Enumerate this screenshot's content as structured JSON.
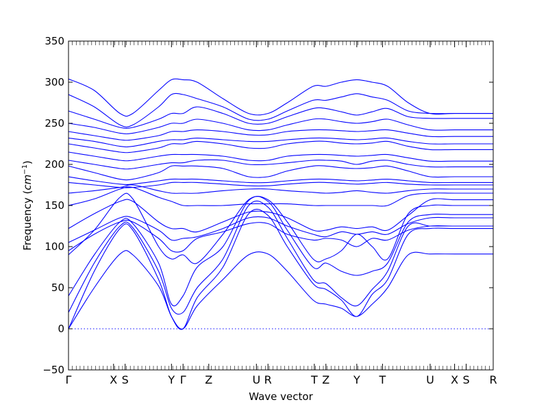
{
  "chart_data": {
    "type": "line",
    "xlabel": "Wave vector",
    "ylabel_text": "Frequency (",
    "ylabel_unit": "cm",
    "ylabel_exp": "−1",
    "ylabel_close": ")",
    "ylim": [
      -50,
      350
    ],
    "yticks": [
      -50,
      0,
      50,
      100,
      150,
      200,
      250,
      300,
      350
    ],
    "xlim": [
      0,
      16.5
    ],
    "grid": false,
    "legend": "none",
    "line_color": "#0000ff",
    "kpoints": [
      {
        "label": "Γ",
        "x": 0
      },
      {
        "label": "X",
        "x": 1.75
      },
      {
        "label": "S",
        "x": 2.2
      },
      {
        "label": "Y",
        "x": 4.0
      },
      {
        "label": "Γ",
        "x": 4.45
      },
      {
        "label": "Z",
        "x": 5.45
      },
      {
        "label": "U",
        "x": 7.3
      },
      {
        "label": "R",
        "x": 7.75
      },
      {
        "label": "T",
        "x": 9.55
      },
      {
        "label": "Z",
        "x": 10.0
      },
      {
        "label": "Y",
        "x": 11.2
      },
      {
        "label": "T",
        "x": 12.2
      },
      {
        "label": "U",
        "x": 14.05
      },
      {
        "label": "X",
        "x": 15.0
      },
      {
        "label": "S",
        "x": 15.45
      },
      {
        "label": "R",
        "x": 16.5
      }
    ],
    "series": [
      {
        "x": [
          0,
          1,
          2,
          2.5,
          3.5,
          4,
          4.45,
          5,
          6,
          7,
          7.75,
          8.5,
          9.5,
          10,
          10.6,
          11.2,
          11.8,
          12.4,
          13.2,
          14.05,
          15,
          16.5
        ],
        "y": [
          0,
          50,
          91,
          90,
          52,
          15,
          0,
          28,
          60,
          90,
          91,
          70,
          35,
          30,
          25,
          15,
          30,
          50,
          90,
          91,
          91,
          91
        ]
      },
      {
        "x": [
          0,
          1,
          2,
          2.5,
          3.5,
          4,
          4.45,
          5,
          6,
          7,
          7.75,
          8.5,
          9.5,
          10,
          10.6,
          11.2,
          11.8,
          12.4,
          13.2,
          14.05,
          15,
          16.5
        ],
        "y": [
          0,
          70,
          122,
          120,
          60,
          15,
          0,
          38,
          75,
          140,
          138,
          100,
          55,
          48,
          35,
          15,
          42,
          60,
          115,
          122,
          122,
          122
        ]
      },
      {
        "x": [
          0,
          1,
          2,
          2.5,
          3.5,
          4,
          4.45,
          5,
          6,
          7,
          7.75,
          8.5,
          9.5,
          10,
          10.6,
          11.2,
          11.8,
          12.4,
          13.2,
          14.05,
          15,
          16.5
        ],
        "y": [
          20,
          80,
          125,
          123,
          70,
          25,
          20,
          50,
          85,
          150,
          148,
          110,
          60,
          55,
          38,
          28,
          48,
          70,
          125,
          125,
          125,
          125
        ]
      },
      {
        "x": [
          0,
          1,
          2,
          2.5,
          3.5,
          4,
          4.45,
          5,
          6,
          7,
          7.75,
          8.5,
          9.5,
          10,
          10.6,
          11.2,
          11.8,
          12.4,
          13.2,
          14.05,
          15,
          16.5
        ],
        "y": [
          40,
          90,
          130,
          128,
          80,
          30,
          40,
          75,
          100,
          156,
          155,
          120,
          75,
          80,
          70,
          65,
          70,
          80,
          130,
          139,
          139,
          139
        ]
      },
      {
        "x": [
          0,
          1,
          2,
          2.5,
          3.5,
          4,
          4.45,
          5,
          6,
          7,
          7.75,
          8.5,
          9.5,
          10,
          10.6,
          11.2,
          11.8,
          12.4,
          13.2,
          14.05,
          15,
          16.5
        ],
        "y": [
          90,
          120,
          160,
          158,
          100,
          85,
          90,
          80,
          115,
          157,
          157,
          130,
          85,
          85,
          95,
          115,
          100,
          85,
          140,
          150,
          150,
          150
        ]
      },
      {
        "x": [
          0,
          1,
          2,
          2.5,
          3.5,
          4,
          4.45,
          5,
          6,
          7,
          7.75,
          8.5,
          9.5,
          10,
          10.6,
          11.2,
          11.8,
          12.4,
          13.2,
          14.05,
          15,
          16.5
        ],
        "y": [
          95,
          115,
          130,
          130,
          110,
          95,
          95,
          110,
          118,
          128,
          128,
          115,
          108,
          110,
          108,
          100,
          110,
          108,
          120,
          125,
          125,
          125
        ]
      },
      {
        "x": [
          0,
          1,
          2,
          2.5,
          3.5,
          4,
          4.45,
          5,
          6,
          7,
          7.75,
          8.5,
          9.5,
          10,
          10.6,
          11.2,
          11.8,
          12.4,
          13.2,
          14.05,
          15,
          16.5
        ],
        "y": [
          105,
          120,
          135,
          135,
          120,
          108,
          110,
          112,
          122,
          135,
          135,
          125,
          115,
          112,
          118,
          115,
          118,
          115,
          128,
          135,
          135,
          135
        ]
      },
      {
        "x": [
          0,
          1,
          2,
          2.5,
          3.5,
          4,
          4.45,
          5,
          6,
          7,
          7.75,
          8.5,
          9.5,
          10,
          10.6,
          11.2,
          11.8,
          12.4,
          13.2,
          14.05,
          15,
          16.5
        ],
        "y": [
          122,
          140,
          155,
          155,
          130,
          122,
          122,
          118,
          130,
          142,
          142,
          135,
          120,
          120,
          124,
          122,
          124,
          120,
          138,
          157,
          157,
          157
        ]
      },
      {
        "x": [
          0,
          1,
          2,
          2.5,
          3.5,
          4,
          4.45,
          5,
          6,
          7,
          7.75,
          8.5,
          9.5,
          10,
          10.6,
          11.2,
          11.8,
          12.4,
          13.2,
          14.05,
          15,
          16.5
        ],
        "y": [
          150,
          158,
          170,
          172,
          160,
          155,
          150,
          150,
          150,
          152,
          152,
          152,
          150,
          150,
          150,
          150,
          150,
          150,
          162,
          165,
          165,
          165
        ]
      },
      {
        "x": [
          0,
          1,
          2,
          2.5,
          3.5,
          4,
          4.45,
          5,
          6,
          7,
          7.75,
          8.5,
          9.5,
          10,
          10.6,
          11.2,
          11.8,
          12.4,
          13.2,
          14.05,
          15,
          16.5
        ],
        "y": [
          165,
          168,
          172,
          175,
          168,
          165,
          165,
          165,
          168,
          170,
          170,
          168,
          166,
          165,
          166,
          168,
          166,
          165,
          168,
          170,
          170,
          170
        ]
      },
      {
        "x": [
          0,
          1,
          2,
          2.5,
          3.5,
          4,
          4.45,
          5,
          6,
          7,
          7.75,
          8.5,
          9.5,
          10,
          10.6,
          11.2,
          11.8,
          12.4,
          13.2,
          14.05,
          15,
          16.5
        ],
        "y": [
          178,
          175,
          172,
          172,
          175,
          178,
          178,
          178,
          176,
          174,
          174,
          176,
          178,
          178,
          177,
          176,
          177,
          178,
          176,
          175,
          175,
          175
        ]
      },
      {
        "x": [
          0,
          1,
          2,
          2.5,
          3.5,
          4,
          4.45,
          5,
          6,
          7,
          7.75,
          8.5,
          9.5,
          10,
          10.6,
          11.2,
          11.8,
          12.4,
          13.2,
          14.05,
          15,
          16.5
        ],
        "y": [
          185,
          180,
          176,
          176,
          180,
          182,
          182,
          182,
          180,
          178,
          178,
          180,
          182,
          182,
          181,
          180,
          181,
          182,
          180,
          178,
          178,
          178
        ]
      },
      {
        "x": [
          0,
          1,
          2,
          2.5,
          3.5,
          4,
          4.45,
          5,
          6,
          7,
          7.75,
          8.5,
          9.5,
          10,
          10.6,
          11.2,
          11.8,
          12.4,
          13.2,
          14.05,
          15,
          16.5
        ],
        "y": [
          198,
          190,
          182,
          182,
          190,
          198,
          198,
          198,
          195,
          185,
          185,
          192,
          198,
          198,
          196,
          195,
          196,
          198,
          192,
          185,
          185,
          185
        ]
      },
      {
        "x": [
          0,
          1,
          2,
          2.5,
          3.5,
          4,
          4.45,
          5,
          6,
          7,
          7.75,
          8.5,
          9.5,
          10,
          10.6,
          11.2,
          11.8,
          12.4,
          13.2,
          14.05,
          15,
          16.5
        ],
        "y": [
          205,
          200,
          195,
          195,
          200,
          202,
          202,
          205,
          205,
          200,
          200,
          202,
          205,
          205,
          204,
          200,
          204,
          205,
          200,
          197,
          197,
          197
        ]
      },
      {
        "x": [
          0,
          1,
          2,
          2.5,
          3.5,
          4,
          4.45,
          5,
          6,
          7,
          7.75,
          8.5,
          9.5,
          10,
          10.6,
          11.2,
          11.8,
          12.4,
          13.2,
          14.05,
          15,
          16.5
        ],
        "y": [
          215,
          210,
          205,
          205,
          210,
          212,
          212,
          212,
          210,
          205,
          205,
          210,
          212,
          212,
          211,
          210,
          211,
          212,
          208,
          204,
          204,
          204
        ]
      },
      {
        "x": [
          0,
          1,
          2,
          2.5,
          3.5,
          4,
          4.45,
          5,
          6,
          7,
          7.75,
          8.5,
          9.5,
          10,
          10.6,
          11.2,
          11.8,
          12.4,
          13.2,
          14.05,
          15,
          16.5
        ],
        "y": [
          225,
          220,
          215,
          215,
          220,
          225,
          225,
          228,
          225,
          220,
          220,
          225,
          228,
          228,
          226,
          225,
          226,
          228,
          222,
          218,
          218,
          218
        ]
      },
      {
        "x": [
          0,
          1,
          2,
          2.5,
          3.5,
          4,
          4.45,
          5,
          6,
          7,
          7.75,
          8.5,
          9.5,
          10,
          10.6,
          11.2,
          11.8,
          12.4,
          13.2,
          14.05,
          15,
          16.5
        ],
        "y": [
          232,
          228,
          222,
          222,
          228,
          230,
          230,
          232,
          230,
          228,
          228,
          230,
          232,
          232,
          231,
          230,
          231,
          232,
          228,
          225,
          225,
          225
        ]
      },
      {
        "x": [
          0,
          1,
          2,
          2.5,
          3.5,
          4,
          4.45,
          5,
          6,
          7,
          7.75,
          8.5,
          9.5,
          10,
          10.6,
          11.2,
          11.8,
          12.4,
          13.2,
          14.05,
          15,
          16.5
        ],
        "y": [
          240,
          235,
          230,
          230,
          235,
          240,
          240,
          242,
          240,
          236,
          236,
          240,
          242,
          242,
          241,
          240,
          241,
          242,
          238,
          234,
          234,
          234
        ]
      },
      {
        "x": [
          0,
          1,
          2,
          2.5,
          3.5,
          4,
          4.45,
          5,
          6,
          7,
          7.75,
          8.5,
          9.5,
          10,
          10.6,
          11.2,
          11.8,
          12.4,
          13.2,
          14.05,
          15,
          16.5
        ],
        "y": [
          250,
          245,
          238,
          238,
          245,
          250,
          250,
          255,
          250,
          242,
          242,
          248,
          255,
          255,
          252,
          250,
          252,
          255,
          248,
          242,
          242,
          242
        ]
      },
      {
        "x": [
          0,
          1,
          2,
          2.5,
          3.5,
          4,
          4.45,
          5,
          6,
          7,
          7.75,
          8.5,
          9.5,
          10,
          10.6,
          11.2,
          11.8,
          12.4,
          13.2,
          14.05,
          15,
          16.5
        ],
        "y": [
          265,
          255,
          245,
          245,
          255,
          262,
          262,
          270,
          262,
          250,
          250,
          258,
          268,
          268,
          264,
          260,
          264,
          268,
          258,
          256,
          256,
          256
        ]
      },
      {
        "x": [
          0,
          1,
          2,
          2.5,
          3.5,
          4,
          4.45,
          5,
          6,
          7,
          7.75,
          8.5,
          9.5,
          10,
          10.6,
          11.2,
          11.8,
          12.4,
          13.2,
          14.05,
          15,
          16.5
        ],
        "y": [
          285,
          270,
          248,
          248,
          270,
          285,
          285,
          280,
          270,
          255,
          255,
          265,
          278,
          278,
          282,
          286,
          282,
          278,
          265,
          262,
          262,
          262
        ]
      },
      {
        "x": [
          0,
          1,
          2,
          2.5,
          3.5,
          4,
          4.45,
          5,
          6,
          7,
          7.75,
          8.5,
          9.5,
          10,
          10.6,
          11.2,
          11.8,
          12.4,
          13.2,
          14.05,
          15,
          16.5
        ],
        "y": [
          304,
          290,
          262,
          262,
          290,
          303,
          303,
          300,
          280,
          262,
          262,
          275,
          295,
          295,
          300,
          303,
          300,
          295,
          275,
          262,
          262,
          262
        ]
      }
    ]
  }
}
